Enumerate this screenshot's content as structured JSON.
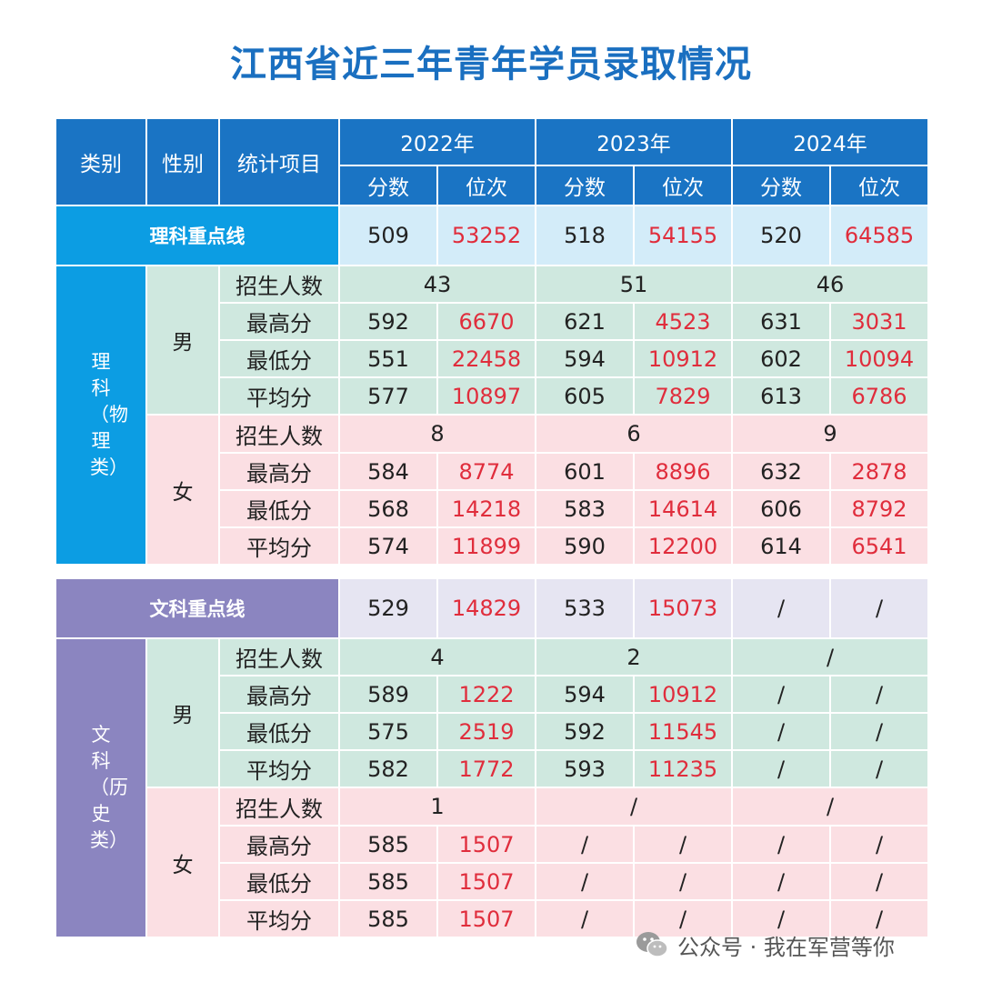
{
  "title": "江西省近三年青年学员录取情况",
  "header": {
    "category": "类别",
    "gender": "性别",
    "stat_item": "统计项目",
    "years": [
      "2022年",
      "2023年",
      "2024年"
    ],
    "score": "分数",
    "rank": "位次"
  },
  "science": {
    "line_label": "理科重点线",
    "line": [
      {
        "score": "509",
        "rank": "53252"
      },
      {
        "score": "518",
        "rank": "54155"
      },
      {
        "score": "520",
        "rank": "64585"
      }
    ],
    "category_label": "理科（物理类）",
    "male": {
      "label": "男",
      "enroll_label": "招生人数",
      "enroll": [
        "43",
        "51",
        "46"
      ],
      "rows": [
        {
          "label": "最高分",
          "cells": [
            [
              "592",
              "6670"
            ],
            [
              "621",
              "4523"
            ],
            [
              "631",
              "3031"
            ]
          ]
        },
        {
          "label": "最低分",
          "cells": [
            [
              "551",
              "22458"
            ],
            [
              "594",
              "10912"
            ],
            [
              "602",
              "10094"
            ]
          ]
        },
        {
          "label": "平均分",
          "cells": [
            [
              "577",
              "10897"
            ],
            [
              "605",
              "7829"
            ],
            [
              "613",
              "6786"
            ]
          ]
        }
      ]
    },
    "female": {
      "label": "女",
      "enroll_label": "招生人数",
      "enroll": [
        "8",
        "6",
        "9"
      ],
      "rows": [
        {
          "label": "最高分",
          "cells": [
            [
              "584",
              "8774"
            ],
            [
              "601",
              "8896"
            ],
            [
              "632",
              "2878"
            ]
          ]
        },
        {
          "label": "最低分",
          "cells": [
            [
              "568",
              "14218"
            ],
            [
              "583",
              "14614"
            ],
            [
              "606",
              "8792"
            ]
          ]
        },
        {
          "label": "平均分",
          "cells": [
            [
              "574",
              "11899"
            ],
            [
              "590",
              "12200"
            ],
            [
              "614",
              "6541"
            ]
          ]
        }
      ]
    }
  },
  "arts": {
    "line_label": "文科重点线",
    "line": [
      {
        "score": "529",
        "rank": "14829"
      },
      {
        "score": "533",
        "rank": "15073"
      },
      {
        "score": "/",
        "rank": "/"
      }
    ],
    "category_label": "文科（历史类）",
    "male": {
      "label": "男",
      "enroll_label": "招生人数",
      "enroll": [
        "4",
        "2",
        "/"
      ],
      "rows": [
        {
          "label": "最高分",
          "cells": [
            [
              "589",
              "1222"
            ],
            [
              "594",
              "10912"
            ],
            [
              "/",
              "/"
            ]
          ]
        },
        {
          "label": "最低分",
          "cells": [
            [
              "575",
              "2519"
            ],
            [
              "592",
              "11545"
            ],
            [
              "/",
              "/"
            ]
          ]
        },
        {
          "label": "平均分",
          "cells": [
            [
              "582",
              "1772"
            ],
            [
              "593",
              "11235"
            ],
            [
              "/",
              "/"
            ]
          ]
        }
      ]
    },
    "female": {
      "label": "女",
      "enroll_label": "招生人数",
      "enroll": [
        "1",
        "/",
        "/"
      ],
      "rows": [
        {
          "label": "最高分",
          "cells": [
            [
              "585",
              "1507"
            ],
            [
              "/",
              "/"
            ],
            [
              "/",
              "/"
            ]
          ]
        },
        {
          "label": "最低分",
          "cells": [
            [
              "585",
              "1507"
            ],
            [
              "/",
              "/"
            ],
            [
              "/",
              "/"
            ]
          ]
        },
        {
          "label": "平均分",
          "cells": [
            [
              "585",
              "1507"
            ],
            [
              "/",
              "/"
            ],
            [
              "/",
              "/"
            ]
          ]
        }
      ]
    }
  },
  "watermark": {
    "text": "公众号 · 我在军营等你",
    "icon": "wechat-icon"
  }
}
